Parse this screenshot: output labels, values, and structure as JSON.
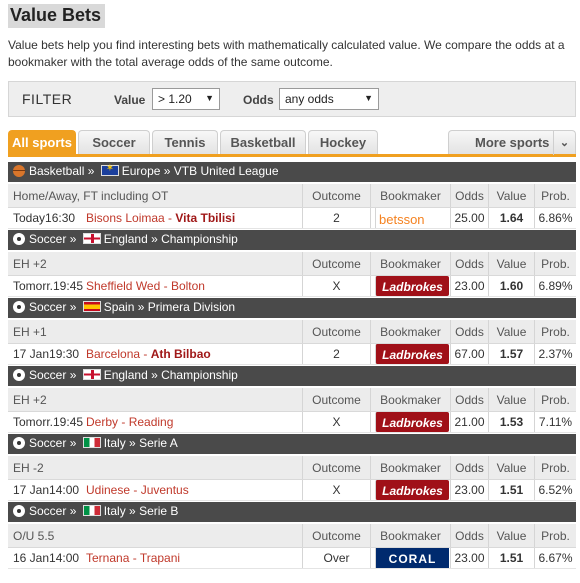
{
  "page": {
    "title": "Value Bets",
    "description": "Value bets help you find interesting bets with mathematically calculated value. We compare the odds at a bookmaker with the total average odds of the same outcome."
  },
  "filter": {
    "label": "FILTER",
    "value_label": "Value",
    "value_selected": "> 1.20",
    "odds_label": "Odds",
    "odds_selected": "any odds"
  },
  "tabs": {
    "items": [
      {
        "label": "All sports",
        "active": true
      },
      {
        "label": "Soccer"
      },
      {
        "label": "Tennis"
      },
      {
        "label": "Basketball"
      },
      {
        "label": "Hockey"
      }
    ],
    "more": "More sports"
  },
  "columns": {
    "outcome": "Outcome",
    "bookmaker": "Bookmaker",
    "odds": "Odds",
    "value": "Value",
    "prob": "Prob."
  },
  "bets": [
    {
      "sport": "Basketball",
      "sport_icon": "basketball-icon",
      "flag": "eu-flag",
      "region": "Europe",
      "league": "VTB United League",
      "market": "Home/Away, FT including OT",
      "time": "Today16:30",
      "home": "Bisons Loimaa",
      "away": "Vita Tbilisi",
      "highlight": "away",
      "outcome": "2",
      "bookmaker": "betsson",
      "odds": "25.00",
      "value": "1.64",
      "prob": "6.86%"
    },
    {
      "sport": "Soccer",
      "sport_icon": "soccer-ball-icon",
      "flag": "england-flag",
      "region": "England",
      "league": "Championship",
      "market": "EH +2",
      "time": "Tomorr.19:45",
      "home": "Sheffield Wed",
      "away": "Bolton",
      "highlight": "none",
      "outcome": "X",
      "bookmaker": "Ladbrokes",
      "odds": "23.00",
      "value": "1.60",
      "prob": "6.89%"
    },
    {
      "sport": "Soccer",
      "sport_icon": "soccer-ball-icon",
      "flag": "spain-flag",
      "region": "Spain",
      "league": "Primera Division",
      "market": "EH +1",
      "time": "17 Jan19:30",
      "home": "Barcelona",
      "away": "Ath Bilbao",
      "highlight": "away",
      "outcome": "2",
      "bookmaker": "Ladbrokes",
      "odds": "67.00",
      "value": "1.57",
      "prob": "2.37%"
    },
    {
      "sport": "Soccer",
      "sport_icon": "soccer-ball-icon",
      "flag": "england-flag",
      "region": "England",
      "league": "Championship",
      "market": "EH +2",
      "time": "Tomorr.19:45",
      "home": "Derby",
      "away": "Reading",
      "highlight": "none",
      "outcome": "X",
      "bookmaker": "Ladbrokes",
      "odds": "21.00",
      "value": "1.53",
      "prob": "7.11%"
    },
    {
      "sport": "Soccer",
      "sport_icon": "soccer-ball-icon",
      "flag": "italy-flag",
      "region": "Italy",
      "league": "Serie A",
      "market": "EH -2",
      "time": "17 Jan14:00",
      "home": "Udinese",
      "away": "Juventus",
      "highlight": "none",
      "outcome": "X",
      "bookmaker": "Ladbrokes",
      "odds": "23.00",
      "value": "1.51",
      "prob": "6.52%"
    },
    {
      "sport": "Soccer",
      "sport_icon": "soccer-ball-icon",
      "flag": "italy-flag",
      "region": "Italy",
      "league": "Serie B",
      "market": "O/U 5.5",
      "time": "16 Jan14:00",
      "home": "Ternana",
      "away": "Trapani",
      "highlight": "none",
      "outcome": "Over",
      "bookmaker": "CORAL",
      "odds": "23.00",
      "value": "1.51",
      "prob": "6.67%"
    }
  ]
}
